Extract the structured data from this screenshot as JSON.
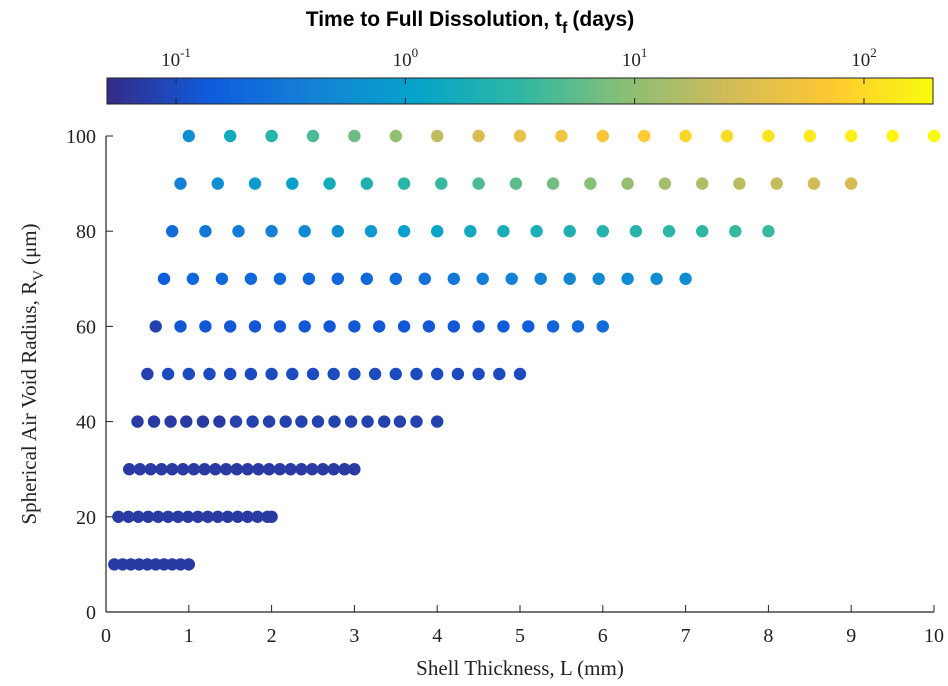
{
  "chart_data": {
    "type": "scatter",
    "xlabel": "Shell Thickness, L (mm)",
    "ylabel": "Spherical Air Void Radius, R",
    "ylabel_sub": "V",
    "ylabel_unit": "(μm)",
    "xlim": [
      0,
      10
    ],
    "ylim": [
      0,
      100
    ],
    "xticks": [
      0,
      1,
      2,
      3,
      4,
      5,
      6,
      7,
      8,
      9,
      10
    ],
    "yticks": [
      0,
      20,
      40,
      60,
      80,
      100
    ],
    "grid": false,
    "colorbar": {
      "label": "Time to Full Dissolution, t",
      "label_sub": "f",
      "label_unit": "(days)",
      "scale": "log",
      "range": [
        0.05,
        200
      ],
      "ticks": [
        {
          "value": 0.1,
          "base": "10",
          "exp": "-1"
        },
        {
          "value": 1,
          "base": "10",
          "exp": "0"
        },
        {
          "value": 10,
          "base": "10",
          "exp": "1"
        },
        {
          "value": 100,
          "base": "10",
          "exp": "2"
        }
      ],
      "colormap": "parula"
    },
    "colormap_stops": [
      "#352a87",
      "#0f5cdd",
      "#1481d6",
      "#06a4ca",
      "#2eb7a4",
      "#87bf77",
      "#d1bb59",
      "#fec832",
      "#f9fb0e"
    ],
    "series": [
      {
        "y": 10,
        "x": [
          0.1,
          0.2,
          0.3,
          0.4,
          0.5,
          0.6,
          0.7,
          0.8,
          0.9,
          1.0
        ],
        "t": [
          0.07,
          0.07,
          0.07,
          0.07,
          0.07,
          0.07,
          0.07,
          0.07,
          0.07,
          0.07
        ]
      },
      {
        "y": 20,
        "x": [
          0.15,
          0.27,
          0.39,
          0.51,
          0.63,
          0.75,
          0.87,
          0.99,
          1.11,
          1.23,
          1.35,
          1.47,
          1.59,
          1.71,
          1.83,
          1.95,
          2.0
        ],
        "t": [
          0.07,
          0.07,
          0.07,
          0.07,
          0.07,
          0.07,
          0.07,
          0.07,
          0.07,
          0.07,
          0.07,
          0.07,
          0.07,
          0.07,
          0.07,
          0.07,
          0.07
        ]
      },
      {
        "y": 30,
        "x": [
          0.28,
          0.41,
          0.54,
          0.67,
          0.8,
          0.93,
          1.06,
          1.19,
          1.32,
          1.45,
          1.58,
          1.71,
          1.84,
          1.97,
          2.1,
          2.23,
          2.36,
          2.49,
          2.62,
          2.75,
          2.88,
          3.0
        ],
        "t": [
          0.07,
          0.07,
          0.07,
          0.07,
          0.07,
          0.07,
          0.07,
          0.07,
          0.07,
          0.07,
          0.07,
          0.07,
          0.07,
          0.07,
          0.07,
          0.07,
          0.07,
          0.07,
          0.07,
          0.07,
          0.07,
          0.07
        ]
      },
      {
        "y": 40,
        "x": [
          0.38,
          0.58,
          0.78,
          0.97,
          1.17,
          1.37,
          1.57,
          1.77,
          1.97,
          2.17,
          2.36,
          2.56,
          2.76,
          2.96,
          3.16,
          3.36,
          3.55,
          3.75,
          4.0
        ],
        "t": [
          0.07,
          0.07,
          0.07,
          0.07,
          0.07,
          0.07,
          0.08,
          0.08,
          0.08,
          0.08,
          0.08,
          0.08,
          0.08,
          0.08,
          0.08,
          0.08,
          0.08,
          0.08,
          0.08
        ]
      },
      {
        "y": 50,
        "x": [
          0.5,
          0.75,
          1.0,
          1.25,
          1.5,
          1.75,
          2.0,
          2.25,
          2.5,
          2.75,
          3.0,
          3.25,
          3.5,
          3.75,
          4.0,
          4.25,
          4.5,
          4.75,
          5.0
        ],
        "t": [
          0.08,
          0.1,
          0.1,
          0.1,
          0.1,
          0.1,
          0.1,
          0.1,
          0.1,
          0.1,
          0.1,
          0.1,
          0.1,
          0.1,
          0.1,
          0.1,
          0.1,
          0.1,
          0.1
        ]
      },
      {
        "y": 60,
        "x": [
          0.6,
          0.9,
          1.2,
          1.5,
          1.8,
          2.1,
          2.4,
          2.7,
          3.0,
          3.3,
          3.6,
          3.9,
          4.2,
          4.5,
          4.8,
          5.1,
          5.4,
          5.7,
          6.0
        ],
        "t": [
          0.08,
          0.13,
          0.13,
          0.13,
          0.13,
          0.13,
          0.13,
          0.13,
          0.13,
          0.13,
          0.13,
          0.13,
          0.13,
          0.13,
          0.14,
          0.15,
          0.17,
          0.2,
          0.22
        ]
      },
      {
        "y": 70,
        "x": [
          0.7,
          1.05,
          1.4,
          1.75,
          2.1,
          2.45,
          2.8,
          3.15,
          3.5,
          3.85,
          4.2,
          4.55,
          4.9,
          5.25,
          5.6,
          5.95,
          6.3,
          6.65,
          7.0
        ],
        "t": [
          0.15,
          0.2,
          0.2,
          0.2,
          0.2,
          0.2,
          0.2,
          0.2,
          0.22,
          0.25,
          0.3,
          0.35,
          0.4,
          0.42,
          0.45,
          0.5,
          0.55,
          0.55,
          0.55
        ]
      },
      {
        "y": 80,
        "x": [
          0.8,
          1.2,
          1.6,
          2.0,
          2.4,
          2.8,
          3.2,
          3.6,
          4.0,
          4.4,
          4.8,
          5.2,
          5.6,
          6.0,
          6.4,
          6.8,
          7.2,
          7.6,
          8.0
        ],
        "t": [
          0.22,
          0.3,
          0.35,
          0.4,
          0.5,
          0.6,
          0.8,
          1.0,
          1.2,
          1.5,
          1.8,
          2.0,
          2.2,
          2.5,
          2.7,
          3.0,
          3.2,
          3.5,
          3.5
        ]
      },
      {
        "y": 90,
        "x": [
          0.9,
          1.35,
          1.8,
          2.25,
          2.7,
          3.15,
          3.6,
          4.05,
          4.5,
          4.95,
          5.4,
          5.85,
          6.3,
          6.75,
          7.2,
          7.65,
          8.1,
          8.55,
          9.0
        ],
        "t": [
          0.4,
          0.6,
          0.8,
          1.0,
          1.6,
          2.2,
          2.8,
          3.5,
          4.5,
          5.5,
          7.0,
          9.0,
          11,
          13,
          16,
          19,
          22,
          25,
          28
        ]
      },
      {
        "y": 100,
        "x": [
          1.0,
          1.5,
          2.0,
          2.5,
          3.0,
          3.5,
          4.0,
          4.5,
          5.0,
          5.5,
          6.0,
          6.5,
          7.0,
          7.5,
          8.0,
          8.5,
          9.0,
          9.5,
          10.0
        ],
        "t": [
          0.6,
          1.5,
          2.5,
          4.5,
          6.5,
          10,
          20,
          30,
          40,
          50,
          60,
          75,
          90,
          105,
          125,
          140,
          160,
          180,
          200
        ]
      }
    ]
  }
}
